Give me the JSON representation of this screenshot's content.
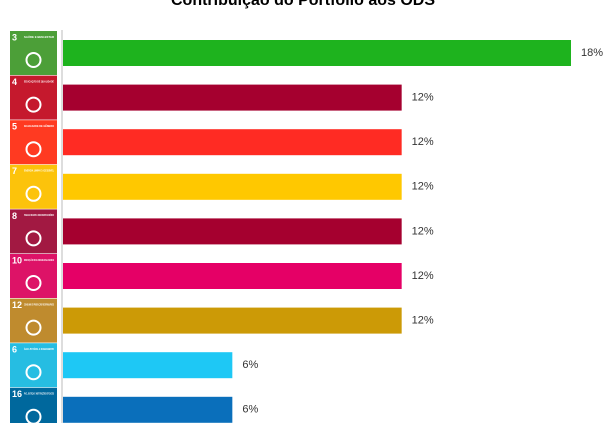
{
  "chart_data": {
    "type": "bar",
    "orientation": "horizontal",
    "title": "Contribuição do Portfólio aos ODS",
    "categories": [
      "3",
      "4",
      "5",
      "7",
      "8",
      "10",
      "12",
      "6",
      "16"
    ],
    "category_titles": [
      "SAÚDE E BEM-ESTAR",
      "EDUCAÇÃO DE QUALIDADE",
      "IGUALDADE DE GÊNERO",
      "ENERGIA LIMPA E ACESSÍVEL",
      "TRABALHO DECENTE E CRESCIMENTO ECONÔMICO",
      "REDUÇÃO DAS DESIGUALDADES",
      "CONSUMO E PRODUÇÃO RESPONSÁVEIS",
      "ÁGUA POTÁVEL E SANEAMENTO",
      "PAZ, JUSTIÇA E INSTITUIÇÕES EFICAZES"
    ],
    "icon_colors": [
      "#4c9f38",
      "#c5192d",
      "#ff3a21",
      "#fcc30b",
      "#a21942",
      "#dd1367",
      "#bf8b2e",
      "#26bde2",
      "#00689d"
    ],
    "colors": [
      "#1eb31e",
      "#a5002f",
      "#ff2b23",
      "#ffc800",
      "#a5002f",
      "#e50066",
      "#cc9a06",
      "#1ec8f5",
      "#0a6fbb"
    ],
    "values": [
      18,
      12,
      12,
      12,
      12,
      12,
      12,
      6,
      6
    ],
    "value_labels": [
      "18%",
      "12%",
      "12%",
      "12%",
      "12%",
      "12%",
      "12%",
      "6%",
      "6%"
    ]
  }
}
